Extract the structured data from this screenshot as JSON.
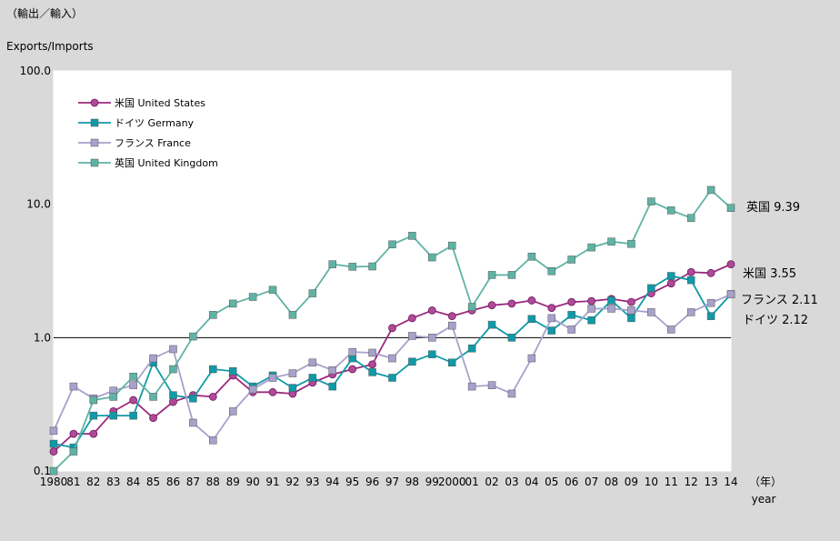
{
  "header": {
    "unit_ja": "（輸出／輸入）",
    "unit_en": "Exports/Imports"
  },
  "chart_data": {
    "type": "line",
    "yscale": "log",
    "ylim": [
      0.1,
      100
    ],
    "y_ticks": [
      "0.1",
      "1.0",
      "10.0",
      "100.0"
    ],
    "reference_line": 1.0,
    "x": [
      1980,
      1981,
      1982,
      1983,
      1984,
      1985,
      1986,
      1987,
      1988,
      1989,
      1990,
      1991,
      1992,
      1993,
      1994,
      1995,
      1996,
      1997,
      1998,
      1999,
      2000,
      2001,
      2002,
      2003,
      2004,
      2005,
      2006,
      2007,
      2008,
      2009,
      2010,
      2011,
      2012,
      2013,
      2014
    ],
    "x_tick_labels": [
      "1980",
      "81",
      "82",
      "83",
      "84",
      "85",
      "86",
      "87",
      "88",
      "89",
      "90",
      "91",
      "92",
      "93",
      "94",
      "95",
      "96",
      "97",
      "98",
      "99",
      "2000",
      "01",
      "02",
      "03",
      "04",
      "05",
      "06",
      "07",
      "08",
      "09",
      "10",
      "11",
      "12",
      "13",
      "14"
    ],
    "xlabel_ja": "（年）",
    "xlabel_en": "year",
    "legend_position": "top-left",
    "series": [
      {
        "name": "米国 United States",
        "marker": "circle",
        "color": "#9b2a7f",
        "fill": "#b04a98",
        "values": [
          0.14,
          0.19,
          0.19,
          0.28,
          0.34,
          0.25,
          0.33,
          0.37,
          0.36,
          0.52,
          0.39,
          0.39,
          0.38,
          0.46,
          0.53,
          0.58,
          0.63,
          1.18,
          1.4,
          1.6,
          1.45,
          1.6,
          1.75,
          1.8,
          1.9,
          1.67,
          1.85,
          1.88,
          1.95,
          1.85,
          2.15,
          2.55,
          3.1,
          3.05,
          3.55
        ],
        "end_label": "米国 3.55"
      },
      {
        "name": "ドイツ Germany",
        "marker": "square",
        "color": "#0f9aa8",
        "fill": "#0f9aa8",
        "values": [
          0.16,
          0.15,
          0.26,
          0.26,
          0.26,
          0.65,
          0.37,
          0.35,
          0.58,
          0.56,
          0.43,
          0.52,
          0.42,
          0.5,
          0.43,
          0.7,
          0.55,
          0.5,
          0.66,
          0.75,
          0.65,
          0.83,
          1.25,
          1.0,
          1.38,
          1.13,
          1.48,
          1.35,
          1.9,
          1.4,
          2.35,
          2.9,
          2.7,
          1.45,
          2.12
        ],
        "end_label": "ドイツ 2.12"
      },
      {
        "name": "フランス France",
        "marker": "square",
        "color": "#a7a1cc",
        "fill": "#a7a1cc",
        "values": [
          0.2,
          0.43,
          0.35,
          0.4,
          0.44,
          0.7,
          0.82,
          0.23,
          0.17,
          0.28,
          0.41,
          0.5,
          0.54,
          0.65,
          0.57,
          0.78,
          0.77,
          0.7,
          1.03,
          1.0,
          1.23,
          0.43,
          0.44,
          0.38,
          0.7,
          1.4,
          1.15,
          1.65,
          1.65,
          1.6,
          1.55,
          1.15,
          1.55,
          1.82,
          2.11
        ],
        "end_label": "フランス 2.11"
      },
      {
        "name": "英国 United Kingdom",
        "marker": "square",
        "color": "#5fb3a4",
        "fill": "#5fb3a4",
        "values": [
          0.1,
          0.14,
          0.34,
          0.36,
          0.51,
          0.36,
          0.58,
          1.02,
          1.48,
          1.8,
          2.02,
          2.28,
          1.48,
          2.15,
          3.55,
          3.4,
          3.42,
          5.0,
          5.8,
          4.0,
          4.9,
          1.7,
          2.95,
          2.95,
          4.05,
          3.15,
          3.85,
          4.75,
          5.25,
          5.05,
          10.5,
          9.0,
          7.9,
          12.8,
          9.39
        ],
        "end_label": "英国 9.39"
      }
    ]
  }
}
